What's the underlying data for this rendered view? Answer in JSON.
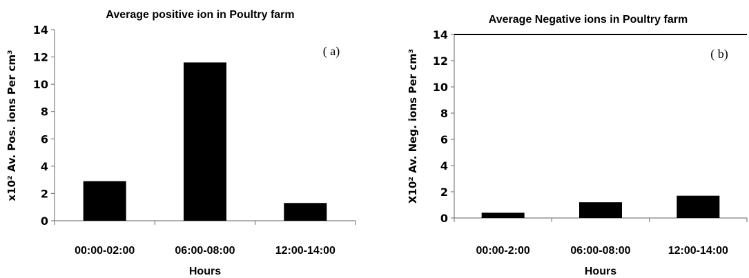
{
  "chart_data": [
    {
      "type": "bar",
      "title": "Average positive ion in Poultry farm",
      "panel_label": "( a)",
      "xlabel": "Hours",
      "ylabel": "x10² Av. Pos. ions Per cm³",
      "categories": [
        "00:00-02:00",
        "06:00-08:00",
        "12:00-14:00"
      ],
      "values": [
        2.9,
        11.6,
        1.3
      ],
      "ylim": [
        0,
        14
      ],
      "yticks": [
        "0",
        "2",
        "4",
        "6",
        "8",
        "10",
        "12",
        "14"
      ],
      "grid": false,
      "bar_color": "#000000"
    },
    {
      "type": "bar",
      "title": "Average Negative ions in Poultry farm",
      "panel_label": "( b)",
      "xlabel": "Hours",
      "ylabel": "X10² Av. Neg. ions Per cm³",
      "categories": [
        "00:00-2:00",
        "06:00-08:00",
        "12:00-14:00"
      ],
      "values": [
        0.4,
        1.2,
        1.7
      ],
      "ylim": [
        0,
        14
      ],
      "yticks": [
        "0",
        "2",
        "4",
        "6",
        "8",
        "10",
        "12",
        "14"
      ],
      "grid": false,
      "bar_color": "#000000"
    }
  ]
}
